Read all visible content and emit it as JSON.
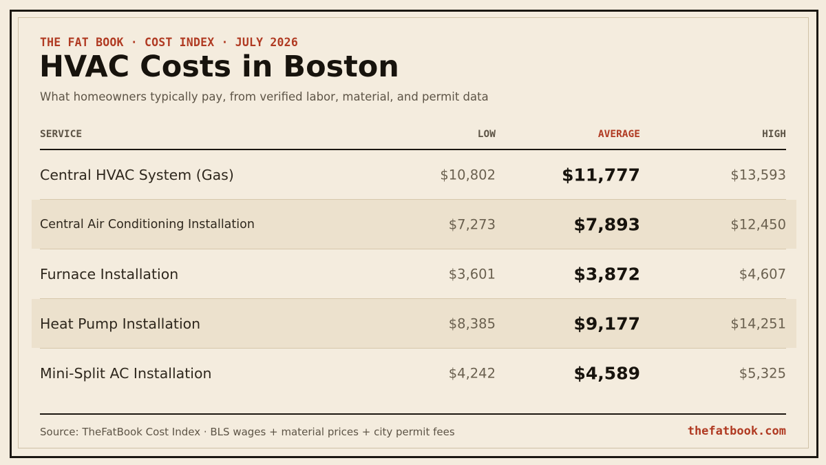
{
  "header": {
    "kicker": "THE FAT BOOK · COST INDEX · JULY 2026",
    "title": "HVAC Costs in Boston",
    "subtitle": "What homeowners typically pay, from verified labor, material, and permit data"
  },
  "table": {
    "columns": {
      "service": "SERVICE",
      "low": "LOW",
      "average": "AVERAGE",
      "high": "HIGH"
    },
    "rows": [
      {
        "service": "Central HVAC System (Gas)",
        "low": "$10,802",
        "average": "$11,777",
        "high": "$13,593"
      },
      {
        "service": "Central Air Conditioning Installation",
        "low": "$7,273",
        "average": "$7,893",
        "high": "$12,450"
      },
      {
        "service": "Furnace Installation",
        "low": "$3,601",
        "average": "$3,872",
        "high": "$4,607"
      },
      {
        "service": "Heat Pump Installation",
        "low": "$8,385",
        "average": "$9,177",
        "high": "$14,251"
      },
      {
        "service": "Mini-Split AC Installation",
        "low": "$4,242",
        "average": "$4,589",
        "high": "$5,325"
      }
    ]
  },
  "footer": {
    "source": "Source: TheFatBook Cost Index · BLS wages + material prices + city permit fees",
    "site": "thefatbook.com"
  },
  "colors": {
    "background": "#f4ecde",
    "accent": "#b03a22",
    "ink": "#17130d",
    "row_shade": "#ece1cd"
  }
}
